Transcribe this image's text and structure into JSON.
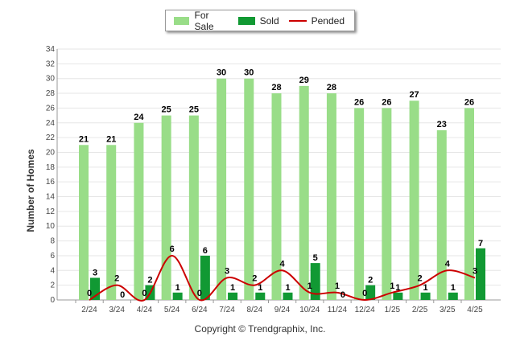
{
  "chart_data": {
    "type": "bar",
    "categories": [
      "2/24",
      "3/24",
      "4/24",
      "5/24",
      "6/24",
      "7/24",
      "8/24",
      "9/24",
      "10/24",
      "11/24",
      "12/24",
      "1/25",
      "2/25",
      "3/25",
      "4/25"
    ],
    "series": [
      {
        "name": "For Sale",
        "type": "bar",
        "color": "#99dd88",
        "values": [
          21,
          21,
          24,
          25,
          25,
          30,
          30,
          28,
          29,
          28,
          26,
          26,
          27,
          23,
          26
        ]
      },
      {
        "name": "Sold",
        "type": "bar",
        "color": "#119933",
        "values": [
          3,
          0,
          2,
          1,
          6,
          1,
          1,
          1,
          5,
          0,
          2,
          1,
          1,
          1,
          7
        ]
      },
      {
        "name": "Pended",
        "type": "line",
        "color": "#cc0000",
        "values": [
          0,
          2,
          0,
          6,
          0,
          3,
          2,
          4,
          1,
          1,
          0,
          1,
          2,
          4,
          3
        ]
      }
    ],
    "ylabel": "Number of Homes",
    "ylim": [
      0,
      34
    ],
    "yticks": [
      0,
      2,
      4,
      6,
      8,
      10,
      12,
      14,
      16,
      18,
      20,
      22,
      24,
      26,
      28,
      30,
      32,
      34
    ],
    "legend_position": "top-center",
    "grid": true
  },
  "footer": {
    "copyright": "Copyright © Trendgraphix, Inc."
  }
}
